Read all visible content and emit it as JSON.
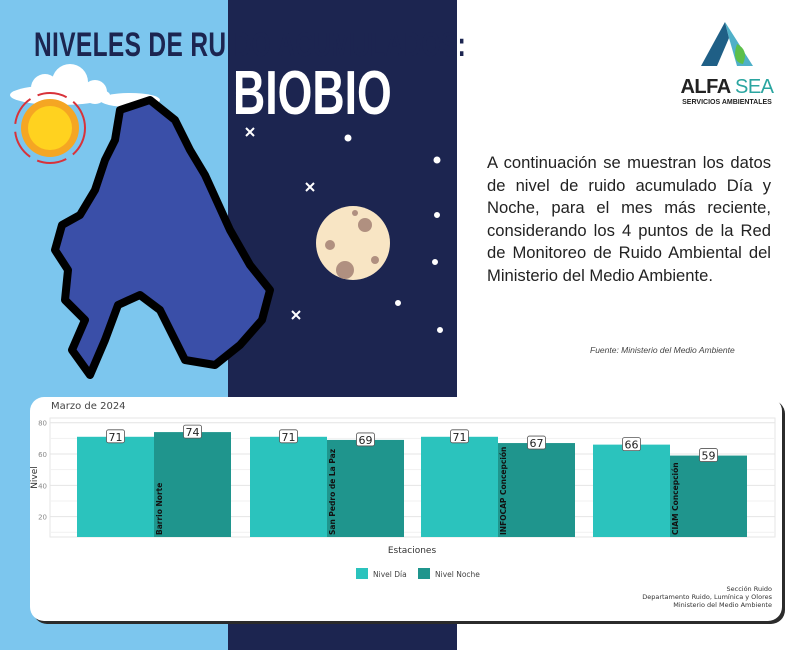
{
  "header": {
    "title_line1": "NIVELES DE RUIDO ACUMULADOS:",
    "title_line2": "BIOBIO"
  },
  "logo": {
    "name_part1": "ALFA",
    "name_part2": "SEA",
    "tagline": "SERVICIOS AMBIENTALES"
  },
  "description": "A continuación se muestran los datos de nivel de ruido acumulado Día y Noche, para el mes más reciente, considerando los 4 puntos de la Red de Monitoreo de Ruido Ambiental del Ministerio del Medio Ambiente.",
  "source": "Fuente: Ministerio del Medio Ambiente",
  "colors": {
    "sky": "#7cc6ee",
    "night": "#1c2550",
    "dia": "#2bc3bd",
    "noche": "#1f958d",
    "map": "#3a4fa8"
  },
  "chart_data": {
    "type": "bar",
    "title": "Marzo de 2024",
    "xlabel": "Estaciones",
    "ylabel": "Nivel",
    "ylim": [
      7,
      83
    ],
    "yticks": [
      20,
      40,
      60,
      80
    ],
    "grid": true,
    "legend_position": "bottom",
    "categories": [
      "Barrio Norte",
      "San Pedro de La Paz",
      "INFOCAP Concepción",
      "CIAM Concepción"
    ],
    "series": [
      {
        "name": "Nivel Día",
        "values": [
          71,
          71,
          71,
          66
        ]
      },
      {
        "name": "Nivel Noche",
        "values": [
          74,
          69,
          67,
          59
        ]
      }
    ]
  },
  "credits": [
    "Sección Ruido",
    "Departamento Ruido, Lumínica y Olores",
    "Ministerio del Medio Ambiente"
  ]
}
